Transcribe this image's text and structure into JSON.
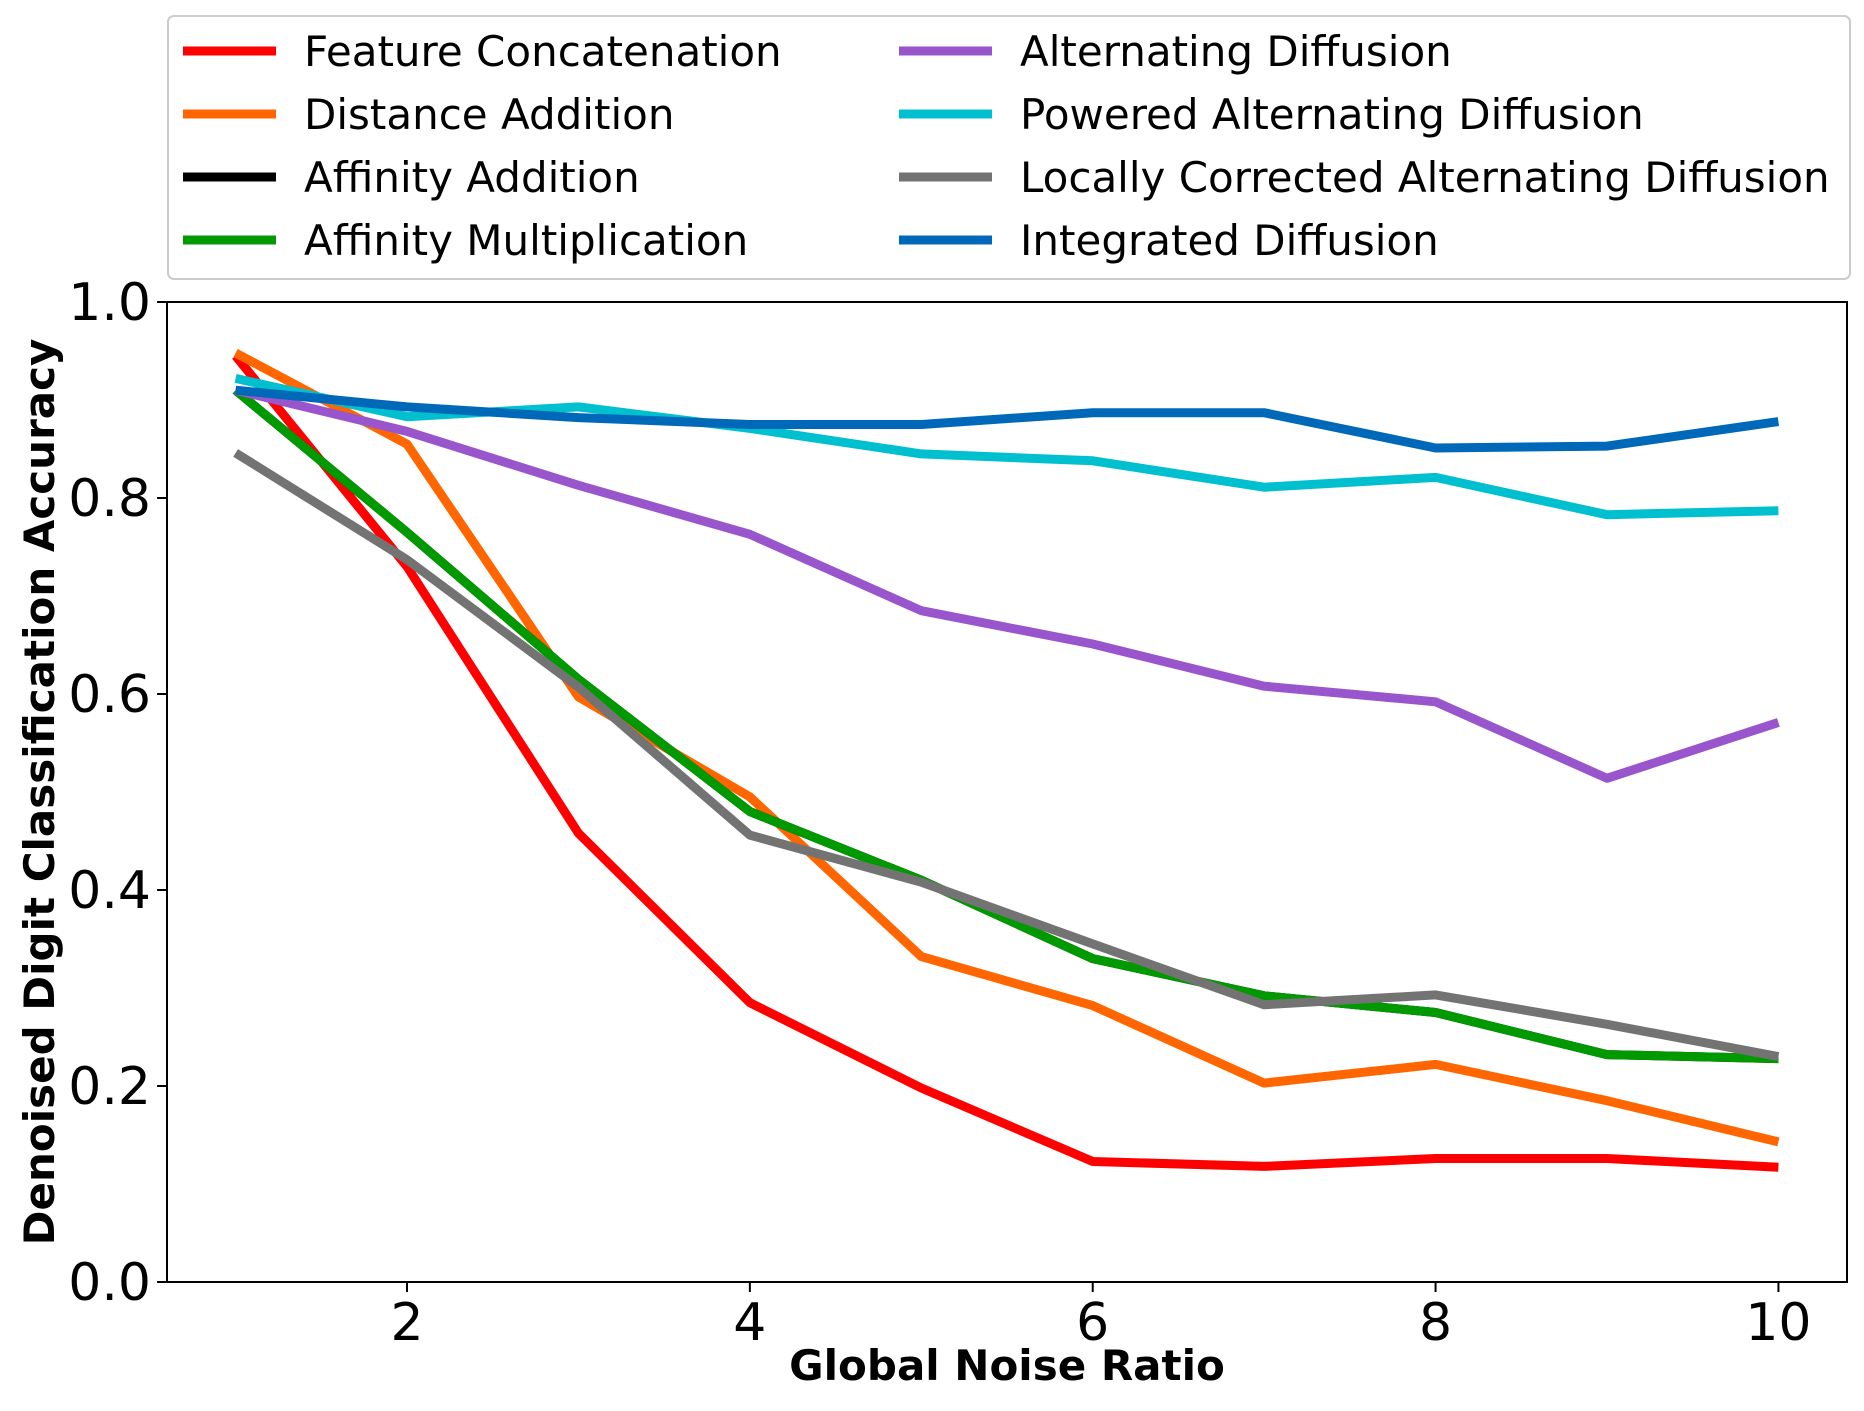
{
  "chart_data": {
    "type": "line",
    "xlabel": "Global Noise Ratio",
    "ylabel": "Denoised Digit Classification Accuracy",
    "xlim": [
      0.6,
      10.4
    ],
    "ylim": [
      0.0,
      1.0
    ],
    "x": [
      1,
      2,
      3,
      4,
      5,
      6,
      7,
      8,
      9,
      10
    ],
    "xticks": [
      2,
      4,
      6,
      8,
      10
    ],
    "xtick_labels": [
      "2",
      "4",
      "6",
      "8",
      "10"
    ],
    "yticks": [
      0.0,
      0.2,
      0.4,
      0.6,
      0.8,
      1.0
    ],
    "ytick_labels": [
      "0.0",
      "0.2",
      "0.4",
      "0.6",
      "0.8",
      "1.0"
    ],
    "grid": false,
    "legend_position": "top, above plot, two columns",
    "series": [
      {
        "name": "Feature Concatenation",
        "color": "#ff0000",
        "values": [
          0.945,
          0.73,
          0.458,
          0.285,
          0.198,
          0.123,
          0.118,
          0.126,
          0.126,
          0.117
        ]
      },
      {
        "name": "Distance Addition",
        "color": "#ff6600",
        "values": [
          0.948,
          0.855,
          0.597,
          0.495,
          0.332,
          0.282,
          0.203,
          0.222,
          0.185,
          0.143
        ]
      },
      {
        "name": "Affinity Addition",
        "color": "#000000",
        "values": [
          0.91,
          0.765,
          0.615,
          0.48,
          0.41,
          0.33,
          0.292,
          0.275,
          0.232,
          0.228
        ]
      },
      {
        "name": "Affinity Multiplication",
        "color": "#009900",
        "values": [
          0.91,
          0.765,
          0.615,
          0.48,
          0.41,
          0.33,
          0.292,
          0.275,
          0.232,
          0.228
        ]
      },
      {
        "name": "Alternating Diffusion",
        "color": "#9955cc",
        "values": [
          0.91,
          0.868,
          0.813,
          0.763,
          0.685,
          0.651,
          0.608,
          0.592,
          0.514,
          0.571
        ]
      },
      {
        "name": "Powered Alternating Diffusion",
        "color": "#00c0d0",
        "values": [
          0.922,
          0.883,
          0.893,
          0.871,
          0.845,
          0.838,
          0.811,
          0.821,
          0.783,
          0.787
        ]
      },
      {
        "name": "Locally Corrected Alternating Diffusion",
        "color": "#737373",
        "values": [
          0.846,
          0.737,
          0.607,
          0.456,
          0.408,
          0.345,
          0.283,
          0.293,
          0.263,
          0.23
        ]
      },
      {
        "name": "Integrated Diffusion",
        "color": "#0068b8",
        "values": [
          0.91,
          0.893,
          0.882,
          0.875,
          0.875,
          0.887,
          0.887,
          0.851,
          0.853,
          0.878
        ]
      }
    ]
  }
}
